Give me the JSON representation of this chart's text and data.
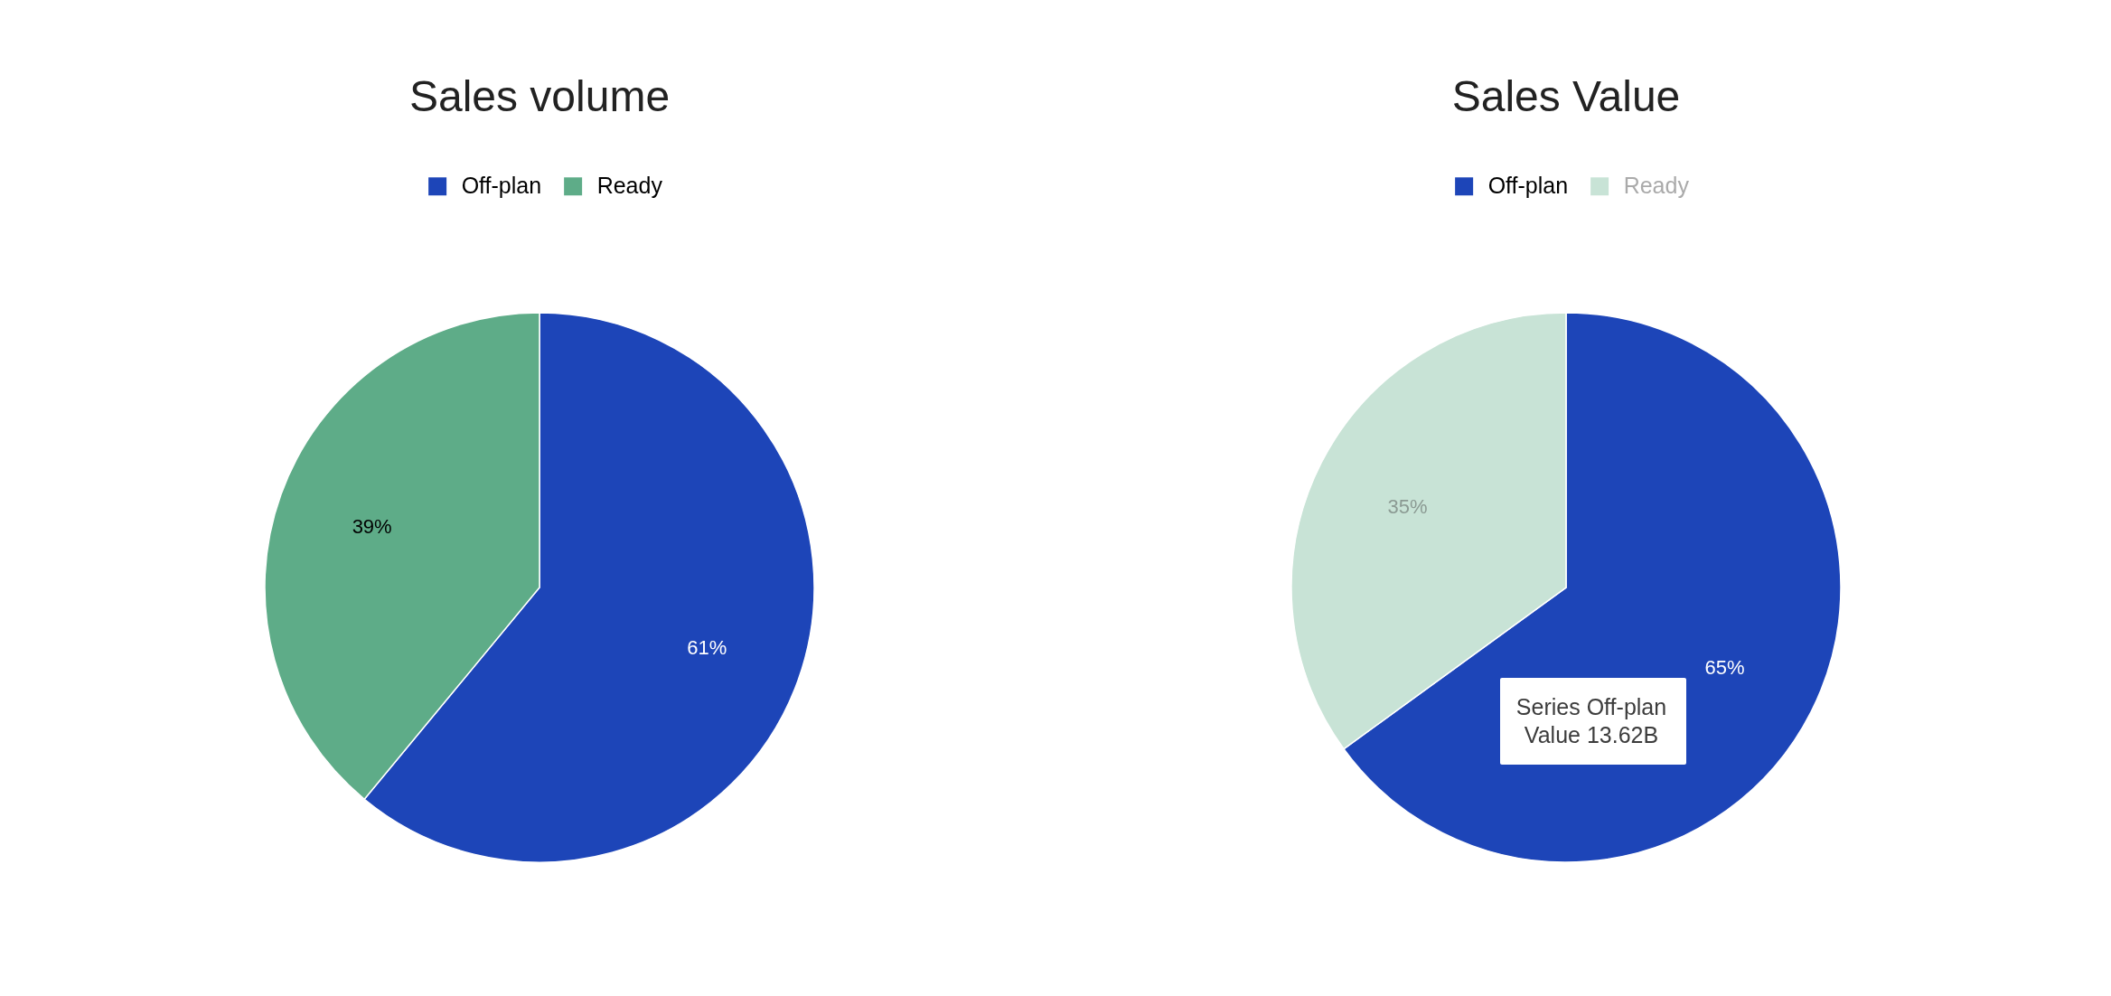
{
  "chart_data": [
    {
      "type": "pie",
      "title": "Sales volume",
      "categories": [
        "Off-plan",
        "Ready"
      ],
      "values": [
        61,
        39
      ],
      "colors": [
        "#1d45b8",
        "#5eac88"
      ],
      "value_labels": [
        "61%",
        "39%"
      ],
      "legend": "top"
    },
    {
      "type": "pie",
      "title": "Sales Value",
      "categories": [
        "Off-plan",
        "Ready"
      ],
      "values": [
        65,
        35
      ],
      "colors": [
        "#1d45b8",
        "#c8e3d6"
      ],
      "value_labels": [
        "65%",
        "35%"
      ],
      "legend": "top",
      "annotations": [
        "Series Off-plan",
        "Value 13.62B"
      ]
    }
  ]
}
